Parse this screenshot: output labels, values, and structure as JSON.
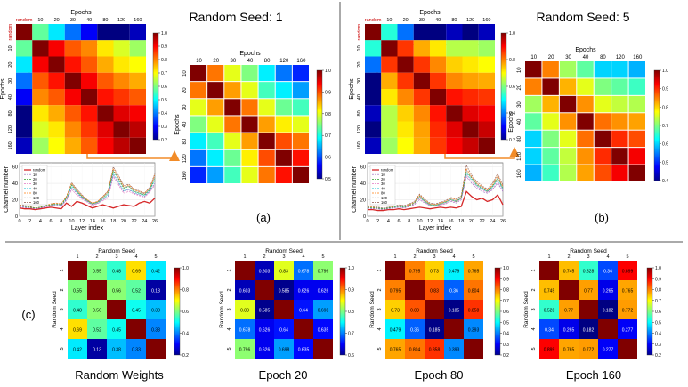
{
  "panels": {
    "a": {
      "seed_title": "Random Seed: 1",
      "label": "(a)"
    },
    "b": {
      "seed_title": "Random Seed: 5",
      "label": "(b)"
    },
    "c": {
      "label": "(c)"
    }
  },
  "heatmap_axis": {
    "epochs_title": "Epochs",
    "seed_title": "Random Seed",
    "epoch_ticks_full": [
      "random",
      "10",
      "20",
      "30",
      "40",
      "80",
      "120",
      "160"
    ],
    "epoch_ticks": [
      "10",
      "20",
      "30",
      "40",
      "80",
      "120",
      "160"
    ],
    "seed_ticks": [
      "1",
      "2",
      "3",
      "4",
      "5"
    ]
  },
  "colorbars": {
    "small_full": [
      "1.0",
      "0.9",
      "0.8",
      "0.7",
      "0.6",
      "0.5",
      "0.4",
      "0.3",
      "0.2"
    ],
    "a_zoom": [
      "1.0",
      "0.9",
      "0.8",
      "0.7",
      "0.6",
      "0.5"
    ],
    "b_full": [
      "1.0",
      "0.8",
      "0.6",
      "0.4",
      "0.2"
    ],
    "b_zoom": [
      "1.0",
      "0.9",
      "0.8",
      "0.7",
      "0.6",
      "0.5",
      "0.4"
    ],
    "c_rw": [
      "1.0",
      "0.8",
      "0.6",
      "0.4",
      "0.2"
    ],
    "c_e20": [
      "1.0",
      "0.9",
      "0.8",
      "0.7",
      "0.6"
    ],
    "c_e80": [
      "1.0",
      "0.9",
      "0.8",
      "0.7",
      "0.6",
      "0.5",
      "0.4",
      "0.3",
      "0.2"
    ],
    "c_e160": [
      "1.0",
      "0.9",
      "0.8",
      "0.7",
      "0.6",
      "0.5",
      "0.4",
      "0.3",
      "0.2"
    ]
  },
  "captions": {
    "random_weights": "Random Weights",
    "epoch20": "Epoch 20",
    "epoch80": "Epoch 80",
    "epoch160": "Epoch 160"
  },
  "line_axis": {
    "xlabel": "Layer index",
    "ylabel": "Channel number",
    "x_ticks": [
      "0",
      "2",
      "4",
      "6",
      "8",
      "10",
      "12",
      "14",
      "16",
      "18",
      "20",
      "22",
      "24",
      "26"
    ],
    "y_ticks": [
      "0",
      "20",
      "40",
      "60"
    ],
    "legend": [
      "random",
      "10",
      "20",
      "30",
      "40",
      "80",
      "120",
      "160"
    ]
  },
  "colors": {
    "random_line": "#d62728",
    "dotted_box": "#e8902a",
    "arrow": "#f28c28",
    "separator": "#555555"
  },
  "chart_data": [
    {
      "type": "heatmap",
      "id": "a_full",
      "categories": [
        "random",
        "10",
        "20",
        "30",
        "40",
        "80",
        "120",
        "160"
      ],
      "values": [
        [
          1.0,
          0.55,
          0.45,
          0.35,
          0.25,
          0.15,
          0.15,
          0.2
        ],
        [
          0.55,
          1.0,
          0.9,
          0.82,
          0.78,
          0.7,
          0.65,
          0.6
        ],
        [
          0.45,
          0.9,
          1.0,
          0.88,
          0.82,
          0.75,
          0.7,
          0.68
        ],
        [
          0.35,
          0.82,
          0.88,
          1.0,
          0.9,
          0.82,
          0.78,
          0.75
        ],
        [
          0.25,
          0.78,
          0.82,
          0.9,
          1.0,
          0.88,
          0.85,
          0.82
        ],
        [
          0.15,
          0.7,
          0.75,
          0.82,
          0.88,
          1.0,
          0.92,
          0.9
        ],
        [
          0.15,
          0.65,
          0.7,
          0.78,
          0.85,
          0.92,
          1.0,
          0.95
        ],
        [
          0.2,
          0.6,
          0.68,
          0.75,
          0.82,
          0.9,
          0.95,
          1.0
        ]
      ]
    },
    {
      "type": "heatmap",
      "id": "a_zoom",
      "categories": [
        "10",
        "20",
        "30",
        "40",
        "80",
        "120",
        "160"
      ],
      "values": [
        [
          1.0,
          0.88,
          0.8,
          0.75,
          0.68,
          0.62,
          0.58
        ],
        [
          0.88,
          1.0,
          0.86,
          0.8,
          0.72,
          0.68,
          0.64
        ],
        [
          0.8,
          0.86,
          1.0,
          0.88,
          0.8,
          0.74,
          0.72
        ],
        [
          0.75,
          0.8,
          0.88,
          1.0,
          0.86,
          0.82,
          0.8
        ],
        [
          0.68,
          0.72,
          0.8,
          0.86,
          1.0,
          0.9,
          0.88
        ],
        [
          0.62,
          0.68,
          0.74,
          0.82,
          0.9,
          1.0,
          0.93
        ],
        [
          0.58,
          0.64,
          0.72,
          0.8,
          0.88,
          0.93,
          1.0
        ]
      ]
    },
    {
      "type": "heatmap",
      "id": "b_full",
      "categories": [
        "random",
        "10",
        "20",
        "30",
        "40",
        "80",
        "120",
        "160"
      ],
      "values": [
        [
          1.0,
          0.5,
          0.35,
          0.15,
          0.15,
          0.2,
          0.15,
          0.2
        ],
        [
          0.5,
          1.0,
          0.85,
          0.75,
          0.7,
          0.62,
          0.62,
          0.6
        ],
        [
          0.35,
          0.85,
          1.0,
          0.85,
          0.78,
          0.72,
          0.7,
          0.68
        ],
        [
          0.15,
          0.75,
          0.85,
          1.0,
          0.85,
          0.78,
          0.76,
          0.75
        ],
        [
          0.15,
          0.7,
          0.78,
          0.85,
          1.0,
          0.88,
          0.86,
          0.85
        ],
        [
          0.2,
          0.62,
          0.72,
          0.78,
          0.88,
          1.0,
          0.92,
          0.9
        ],
        [
          0.15,
          0.62,
          0.7,
          0.76,
          0.86,
          0.92,
          1.0,
          0.94
        ],
        [
          0.2,
          0.6,
          0.68,
          0.75,
          0.85,
          0.9,
          0.94,
          1.0
        ]
      ]
    },
    {
      "type": "heatmap",
      "id": "b_zoom",
      "categories": [
        "10",
        "20",
        "30",
        "40",
        "80",
        "120",
        "160"
      ],
      "values": [
        [
          1.0,
          0.85,
          0.72,
          0.68,
          0.6,
          0.6,
          0.58
        ],
        [
          0.85,
          1.0,
          0.82,
          0.76,
          0.7,
          0.68,
          0.66
        ],
        [
          0.72,
          0.82,
          1.0,
          0.84,
          0.76,
          0.74,
          0.73
        ],
        [
          0.68,
          0.76,
          0.84,
          1.0,
          0.86,
          0.84,
          0.83
        ],
        [
          0.6,
          0.7,
          0.76,
          0.86,
          1.0,
          0.9,
          0.88
        ],
        [
          0.6,
          0.68,
          0.74,
          0.84,
          0.9,
          1.0,
          0.93
        ],
        [
          0.58,
          0.66,
          0.73,
          0.83,
          0.88,
          0.93,
          1.0
        ]
      ]
    },
    {
      "type": "line",
      "id": "a_lines",
      "x": [
        0,
        1,
        2,
        3,
        4,
        5,
        6,
        7,
        8,
        9,
        10,
        11,
        12,
        13,
        14,
        15,
        16,
        17,
        18,
        19,
        20,
        21,
        22,
        23,
        24,
        25,
        26
      ],
      "ylim": [
        0,
        65
      ],
      "xlim": [
        0,
        26
      ],
      "series": [
        {
          "name": "random",
          "values": [
            10,
            9,
            9,
            8,
            9,
            10,
            11,
            10,
            9,
            16,
            12,
            18,
            16,
            13,
            10,
            12,
            14,
            12,
            10,
            12,
            14,
            13,
            12,
            16,
            18,
            16,
            22
          ]
        },
        {
          "name": "10",
          "values": [
            12,
            11,
            10,
            9,
            10,
            12,
            13,
            14,
            13,
            20,
            34,
            28,
            22,
            18,
            14,
            16,
            20,
            24,
            50,
            40,
            30,
            32,
            28,
            26,
            24,
            30,
            40
          ]
        },
        {
          "name": "20",
          "values": [
            13,
            12,
            11,
            10,
            11,
            13,
            14,
            15,
            14,
            22,
            38,
            30,
            24,
            19,
            15,
            17,
            22,
            28,
            55,
            45,
            34,
            36,
            30,
            28,
            26,
            32,
            46
          ]
        },
        {
          "name": "30",
          "values": [
            11,
            10,
            10,
            9,
            10,
            11,
            12,
            13,
            12,
            19,
            32,
            26,
            21,
            17,
            13,
            15,
            19,
            22,
            48,
            38,
            28,
            30,
            27,
            25,
            23,
            29,
            38
          ]
        },
        {
          "name": "40",
          "values": [
            12,
            11,
            10,
            9,
            10,
            12,
            13,
            14,
            13,
            21,
            36,
            29,
            23,
            18,
            14,
            16,
            21,
            26,
            52,
            42,
            31,
            33,
            29,
            27,
            25,
            31,
            44
          ]
        },
        {
          "name": "80",
          "values": [
            14,
            12,
            11,
            10,
            11,
            13,
            15,
            16,
            15,
            24,
            40,
            32,
            25,
            20,
            16,
            18,
            24,
            30,
            58,
            48,
            36,
            38,
            32,
            30,
            28,
            34,
            50
          ]
        },
        {
          "name": "120",
          "values": [
            13,
            12,
            11,
            10,
            11,
            12,
            14,
            15,
            14,
            23,
            39,
            31,
            24,
            19,
            15,
            17,
            23,
            29,
            56,
            46,
            35,
            37,
            31,
            29,
            27,
            33,
            48
          ]
        },
        {
          "name": "160",
          "values": [
            14,
            13,
            12,
            10,
            11,
            13,
            15,
            16,
            15,
            24,
            41,
            33,
            26,
            20,
            16,
            18,
            24,
            31,
            60,
            50,
            37,
            39,
            33,
            31,
            28,
            35,
            52
          ]
        }
      ]
    },
    {
      "type": "line",
      "id": "b_lines",
      "x": [
        0,
        1,
        2,
        3,
        4,
        5,
        6,
        7,
        8,
        9,
        10,
        11,
        12,
        13,
        14,
        15,
        16,
        17,
        18,
        19,
        20,
        21,
        22,
        23,
        24,
        25,
        26
      ],
      "ylim": [
        0,
        65
      ],
      "xlim": [
        0,
        26
      ],
      "series": [
        {
          "name": "random",
          "values": [
            8,
            8,
            7,
            7,
            8,
            8,
            9,
            8,
            9,
            10,
            11,
            10,
            9,
            10,
            11,
            10,
            11,
            10,
            12,
            30,
            24,
            20,
            22,
            18,
            20,
            26,
            14
          ]
        },
        {
          "name": "10",
          "values": [
            10,
            9,
            9,
            8,
            9,
            10,
            11,
            10,
            12,
            14,
            20,
            16,
            13,
            12,
            14,
            15,
            18,
            16,
            20,
            48,
            40,
            34,
            30,
            28,
            32,
            40,
            30
          ]
        },
        {
          "name": "20",
          "values": [
            11,
            10,
            10,
            9,
            10,
            11,
            12,
            11,
            13,
            16,
            24,
            18,
            14,
            13,
            15,
            17,
            20,
            18,
            22,
            54,
            46,
            38,
            34,
            30,
            36,
            46,
            34
          ]
        },
        {
          "name": "30",
          "values": [
            10,
            9,
            9,
            8,
            9,
            10,
            11,
            10,
            12,
            15,
            22,
            17,
            13,
            12,
            14,
            16,
            19,
            17,
            21,
            50,
            42,
            36,
            32,
            29,
            33,
            42,
            31
          ]
        },
        {
          "name": "40",
          "values": [
            11,
            10,
            10,
            9,
            10,
            11,
            12,
            11,
            13,
            16,
            23,
            18,
            14,
            13,
            15,
            17,
            20,
            18,
            22,
            52,
            44,
            37,
            33,
            30,
            35,
            44,
            33
          ]
        },
        {
          "name": "80",
          "values": [
            12,
            11,
            10,
            9,
            10,
            12,
            13,
            12,
            14,
            17,
            26,
            20,
            15,
            14,
            16,
            18,
            22,
            20,
            24,
            58,
            48,
            40,
            36,
            32,
            38,
            50,
            36
          ]
        },
        {
          "name": "120",
          "values": [
            12,
            11,
            10,
            9,
            10,
            12,
            13,
            12,
            14,
            17,
            25,
            19,
            15,
            14,
            16,
            18,
            21,
            19,
            23,
            56,
            47,
            39,
            35,
            31,
            37,
            48,
            35
          ]
        },
        {
          "name": "160",
          "values": [
            13,
            12,
            11,
            10,
            11,
            12,
            14,
            13,
            15,
            18,
            27,
            21,
            16,
            15,
            17,
            19,
            23,
            21,
            25,
            62,
            50,
            42,
            37,
            33,
            40,
            52,
            38
          ]
        }
      ]
    },
    {
      "type": "heatmap",
      "id": "c_rw",
      "title": "Random Weights",
      "categories": [
        "1",
        "2",
        "3",
        "4",
        "5"
      ],
      "values": [
        [
          1,
          0.55,
          0.48,
          0.69,
          0.42
        ],
        [
          0.55,
          1,
          0.56,
          0.52,
          0.13
        ],
        [
          0.48,
          0.56,
          1,
          0.45,
          0.38
        ],
        [
          0.69,
          0.52,
          0.45,
          1,
          0.33
        ],
        [
          0.42,
          0.13,
          0.38,
          0.33,
          1
        ]
      ]
    },
    {
      "type": "heatmap",
      "id": "c_e20",
      "title": "Epoch 20",
      "categories": [
        "1",
        "2",
        "3",
        "4",
        "5"
      ],
      "values": [
        [
          1,
          0.603,
          0.83,
          0.678,
          0.796
        ],
        [
          0.603,
          1,
          0.585,
          0.626,
          0.626
        ],
        [
          0.83,
          0.585,
          1,
          0.64,
          0.698
        ],
        [
          0.678,
          0.626,
          0.64,
          1,
          0.635
        ],
        [
          0.796,
          0.626,
          0.698,
          0.635,
          1
        ]
      ]
    },
    {
      "type": "heatmap",
      "id": "c_e80",
      "title": "Epoch 80",
      "categories": [
        "1",
        "2",
        "3",
        "4",
        "5"
      ],
      "values": [
        [
          1,
          0.795,
          0.73,
          0.479,
          0.765
        ],
        [
          0.795,
          1,
          0.83,
          0.36,
          0.804
        ],
        [
          0.73,
          0.83,
          1,
          0.185,
          0.858
        ],
        [
          0.479,
          0.36,
          0.185,
          1,
          0.393
        ],
        [
          0.765,
          0.804,
          0.858,
          0.393,
          1
        ]
      ]
    },
    {
      "type": "heatmap",
      "id": "c_e160",
      "title": "Epoch 160",
      "categories": [
        "1",
        "2",
        "3",
        "4",
        "5"
      ],
      "values": [
        [
          1,
          0.745,
          0.528,
          0.34,
          0.899
        ],
        [
          0.745,
          1,
          0.77,
          0.265,
          0.765
        ],
        [
          0.528,
          0.77,
          1,
          0.182,
          0.772
        ],
        [
          0.34,
          0.265,
          0.182,
          1,
          0.277
        ],
        [
          0.899,
          0.765,
          0.772,
          0.277,
          1
        ]
      ]
    }
  ]
}
